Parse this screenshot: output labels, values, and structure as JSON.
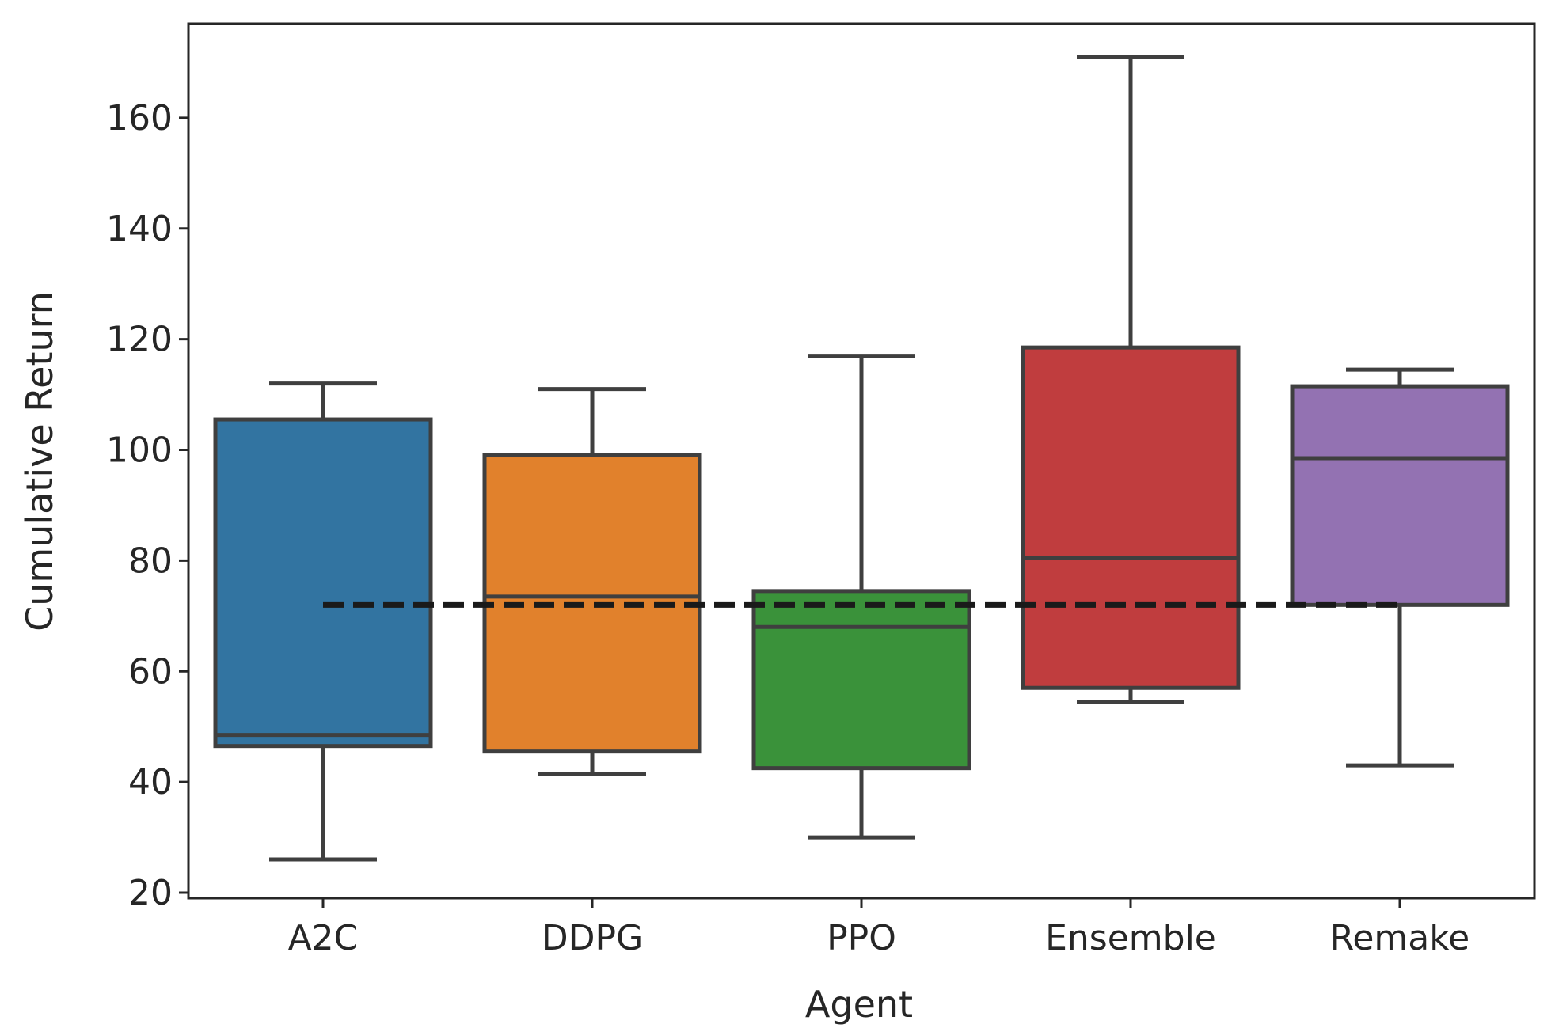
{
  "chart_data": {
    "type": "box",
    "title": "",
    "xlabel": "Agent",
    "ylabel": "Cumulative Return",
    "ylim": [
      19,
      177
    ],
    "yticks": [
      20,
      40,
      60,
      80,
      100,
      120,
      140,
      160
    ],
    "ytick_labels": [
      "20",
      "40",
      "60",
      "80",
      "100",
      "120",
      "140",
      "160"
    ],
    "grid": false,
    "categories": [
      "A2C",
      "DDPG",
      "PPO",
      "Ensemble",
      "Remake"
    ],
    "boxes": [
      {
        "name": "A2C",
        "whisker_low": 26,
        "q1": 46.5,
        "median": 48.5,
        "q3": 105.5,
        "whisker_high": 112,
        "color": "#3274a1"
      },
      {
        "name": "DDPG",
        "whisker_low": 41.5,
        "q1": 45.5,
        "median": 73.5,
        "q3": 99,
        "whisker_high": 111,
        "color": "#e1812c"
      },
      {
        "name": "PPO",
        "whisker_low": 30,
        "q1": 42.5,
        "median": 68,
        "q3": 74.5,
        "whisker_high": 117,
        "color": "#3a923a"
      },
      {
        "name": "Ensemble",
        "whisker_low": 54.5,
        "q1": 57,
        "median": 80.5,
        "q3": 118.5,
        "whisker_high": 171,
        "color": "#c03d3e"
      },
      {
        "name": "Remake",
        "whisker_low": 43,
        "q1": 72,
        "median": 98.5,
        "q3": 111.5,
        "whisker_high": 114.5,
        "color": "#9372b2"
      }
    ],
    "reference_line": {
      "value": 72,
      "from": "A2C",
      "to": "Remake",
      "style": "dashed",
      "color": "#1a1a1a"
    },
    "box_edge_color": "#3f3f3f"
  }
}
